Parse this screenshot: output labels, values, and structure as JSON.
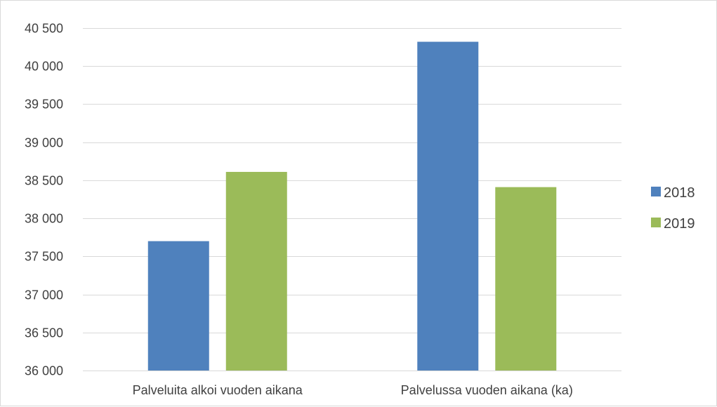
{
  "chart_data": {
    "type": "bar",
    "categories": [
      "Palveluita alkoi vuoden aikana",
      "Palvelussa vuoden aikana (ka)"
    ],
    "series": [
      {
        "name": "2018",
        "values": [
          37700,
          40320
        ],
        "color": "#4f81bd"
      },
      {
        "name": "2019",
        "values": [
          38610,
          38410
        ],
        "color": "#9bbb59"
      }
    ],
    "ylim": [
      36000,
      40500
    ],
    "yticks": [
      36000,
      36500,
      37000,
      37500,
      38000,
      38500,
      39000,
      39500,
      40000,
      40500
    ],
    "ytick_labels": [
      "36 000",
      "36 500",
      "37 000",
      "37 500",
      "38 000",
      "38 500",
      "39 000",
      "39 500",
      "40 000",
      "40 500"
    ],
    "grid": true,
    "legend_position": "right",
    "gridline_color": "#d9d9d9"
  }
}
